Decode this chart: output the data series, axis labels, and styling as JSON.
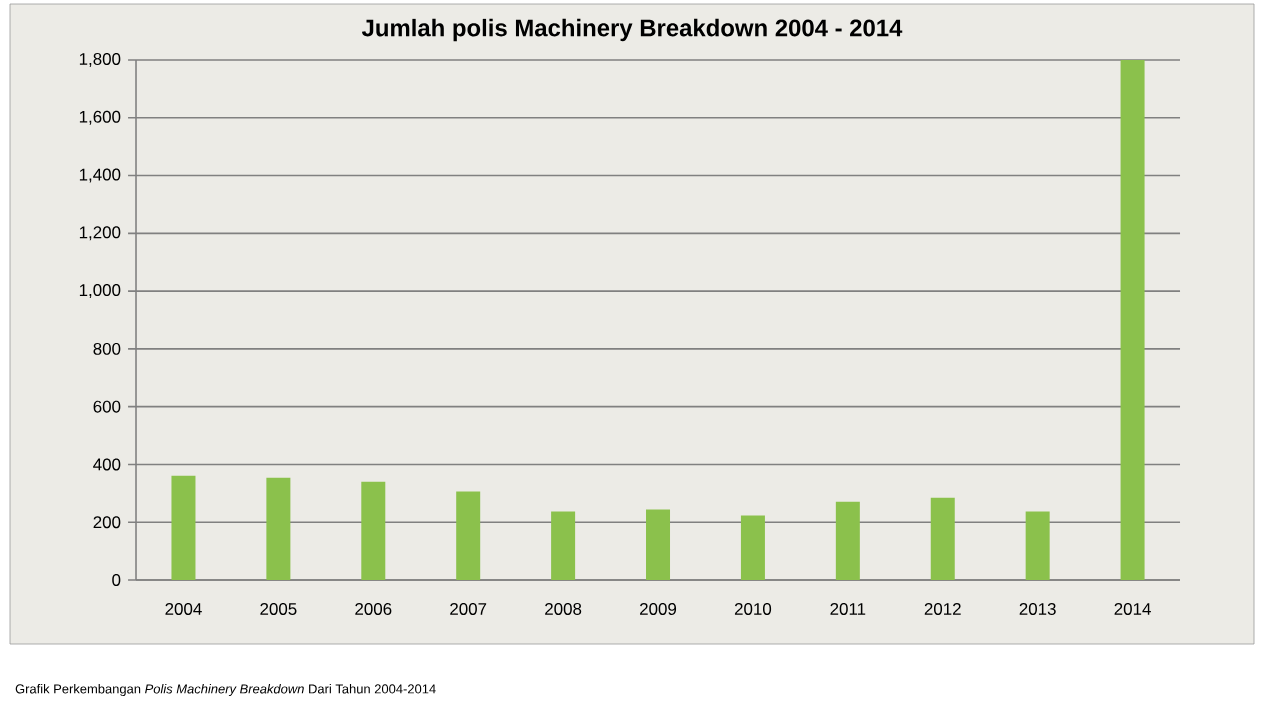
{
  "chart_data": {
    "type": "bar",
    "title": "Jumlah polis Machinery Breakdown 2004 - 2014",
    "categories": [
      "2004",
      "2005",
      "2006",
      "2007",
      "2008",
      "2009",
      "2010",
      "2011",
      "2012",
      "2013",
      "2014"
    ],
    "values": [
      361,
      354,
      340,
      306,
      237,
      244,
      223,
      271,
      285,
      237,
      1800
    ],
    "color": "#8bc14c",
    "ylim": [
      0,
      1800
    ],
    "yticks": [
      0,
      200,
      400,
      600,
      800,
      {
        "value": 1000,
        "label": "1,000"
      },
      {
        "value": 1200,
        "label": "1,200"
      },
      {
        "value": 1400,
        "label": "1,400"
      },
      {
        "value": 1600,
        "label": "1,600"
      },
      {
        "value": 1800,
        "label": "1,800"
      }
    ],
    "grid": "y",
    "annotations": [
      "Grafik Perkembangan *Polis Machinery Breakdown* Dari Tahun 2004-2014"
    ]
  }
}
